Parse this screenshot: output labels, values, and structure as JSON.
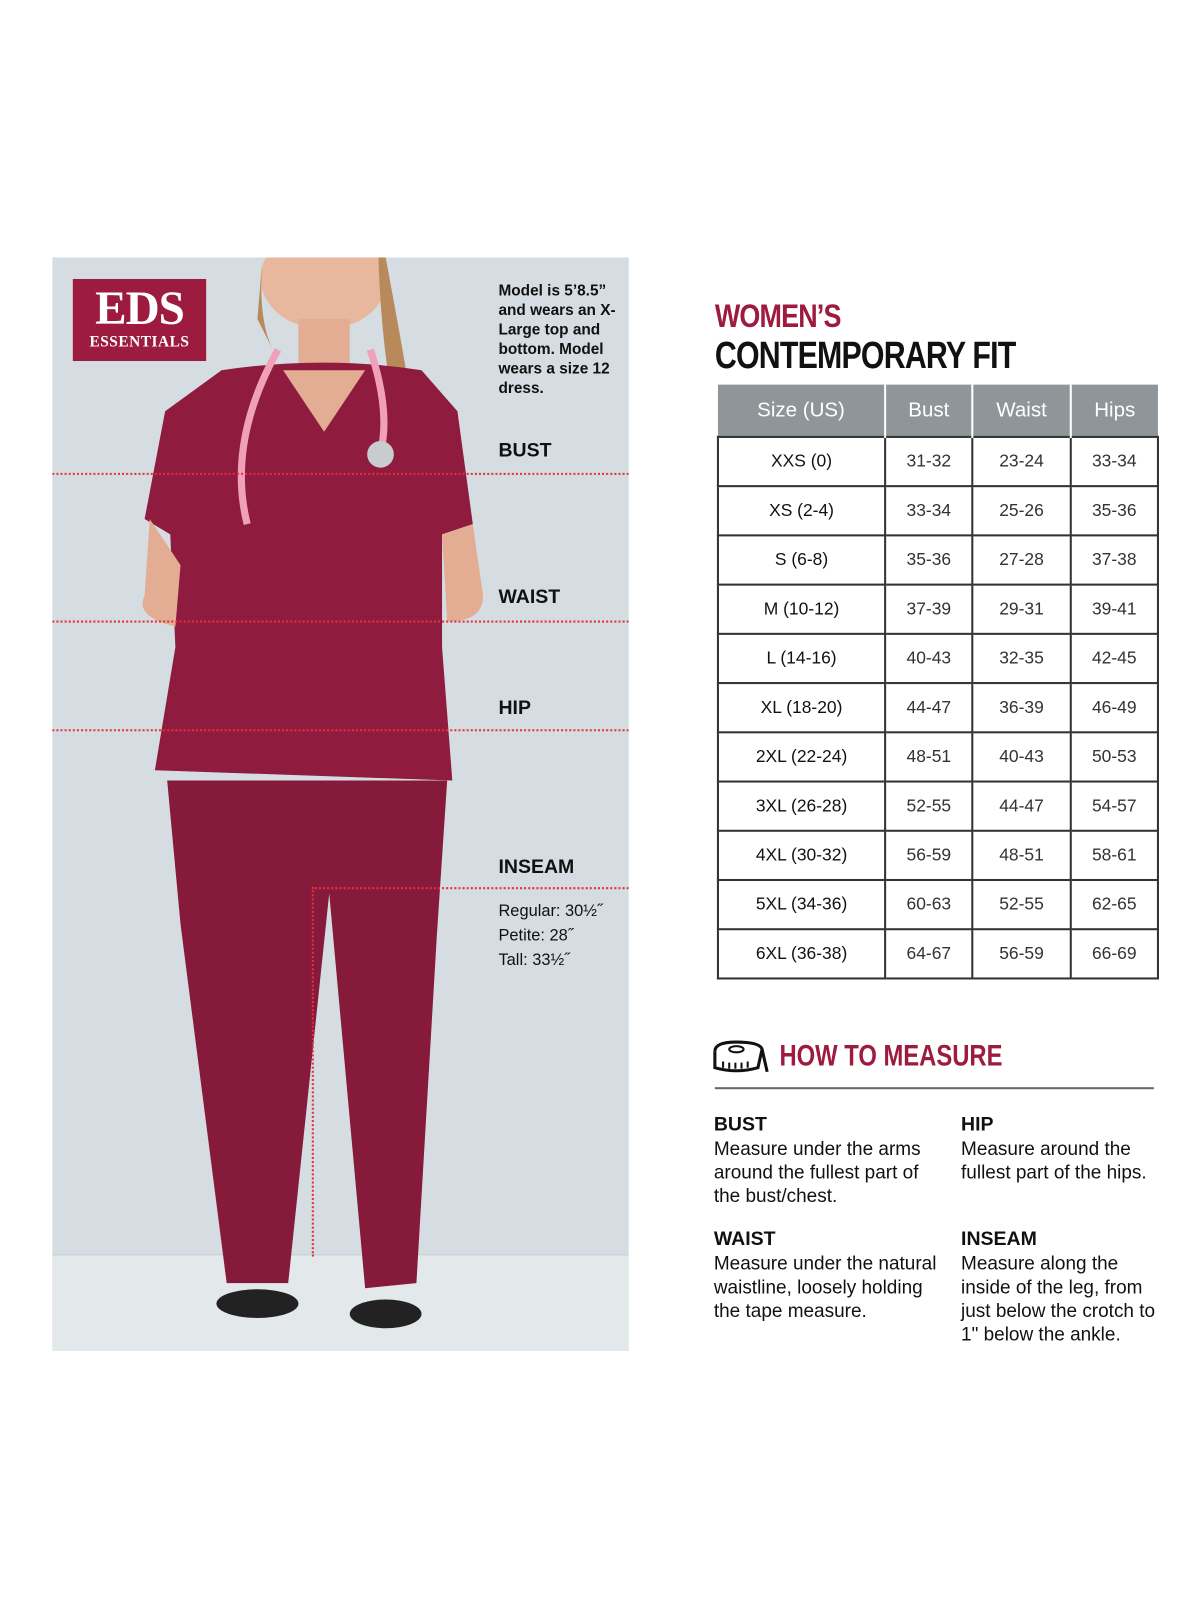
{
  "brand": {
    "logo_main": "EDS",
    "logo_sub": "ESSENTIALS",
    "logo_mark": "®",
    "color": "#9c1b3f"
  },
  "model_note": "Model is 5’8.5” and wears an X-Large top and bottom. Model wears a size 12 dress.",
  "photo_labels": {
    "bust": "BUST",
    "waist": "WAIST",
    "hip": "HIP",
    "inseam": "INSEAM"
  },
  "inseam_lengths": [
    "Regular: 30½˝",
    "Petite: 28˝",
    "Tall: 33½˝"
  ],
  "title": {
    "line1": "WOMEN’S",
    "line2": "CONTEMPORARY FIT"
  },
  "size_table": {
    "headers": [
      "Size (US)",
      "Bust",
      "Waist",
      "Hips"
    ],
    "rows": [
      [
        "XXS (0)",
        "31-32",
        "23-24",
        "33-34"
      ],
      [
        "XS (2-4)",
        "33-34",
        "25-26",
        "35-36"
      ],
      [
        "S (6-8)",
        "35-36",
        "27-28",
        "37-38"
      ],
      [
        "M (10-12)",
        "37-39",
        "29-31",
        "39-41"
      ],
      [
        "L (14-16)",
        "40-43",
        "32-35",
        "42-45"
      ],
      [
        "XL (18-20)",
        "44-47",
        "36-39",
        "46-49"
      ],
      [
        "2XL (22-24)",
        "48-51",
        "40-43",
        "50-53"
      ],
      [
        "3XL (26-28)",
        "52-55",
        "44-47",
        "54-57"
      ],
      [
        "4XL (30-32)",
        "56-59",
        "48-51",
        "58-61"
      ],
      [
        "5XL (34-36)",
        "60-63",
        "52-55",
        "62-65"
      ],
      [
        "6XL (36-38)",
        "64-67",
        "56-59",
        "66-69"
      ]
    ]
  },
  "how_to_measure": {
    "heading": "HOW TO MEASURE",
    "icon": "tape-measure-icon",
    "items": [
      {
        "title": "BUST",
        "text": "Measure under the arms around the fullest part of the bust/chest."
      },
      {
        "title": "HIP",
        "text": "Measure around the fullest part of the hips."
      },
      {
        "title": "WAIST",
        "text": "Measure under the natural waistline, loosely holding the tape measure."
      },
      {
        "title": "INSEAM",
        "text": "Measure along the inside of the leg, from just below the crotch to 1\" below the ankle."
      }
    ]
  }
}
